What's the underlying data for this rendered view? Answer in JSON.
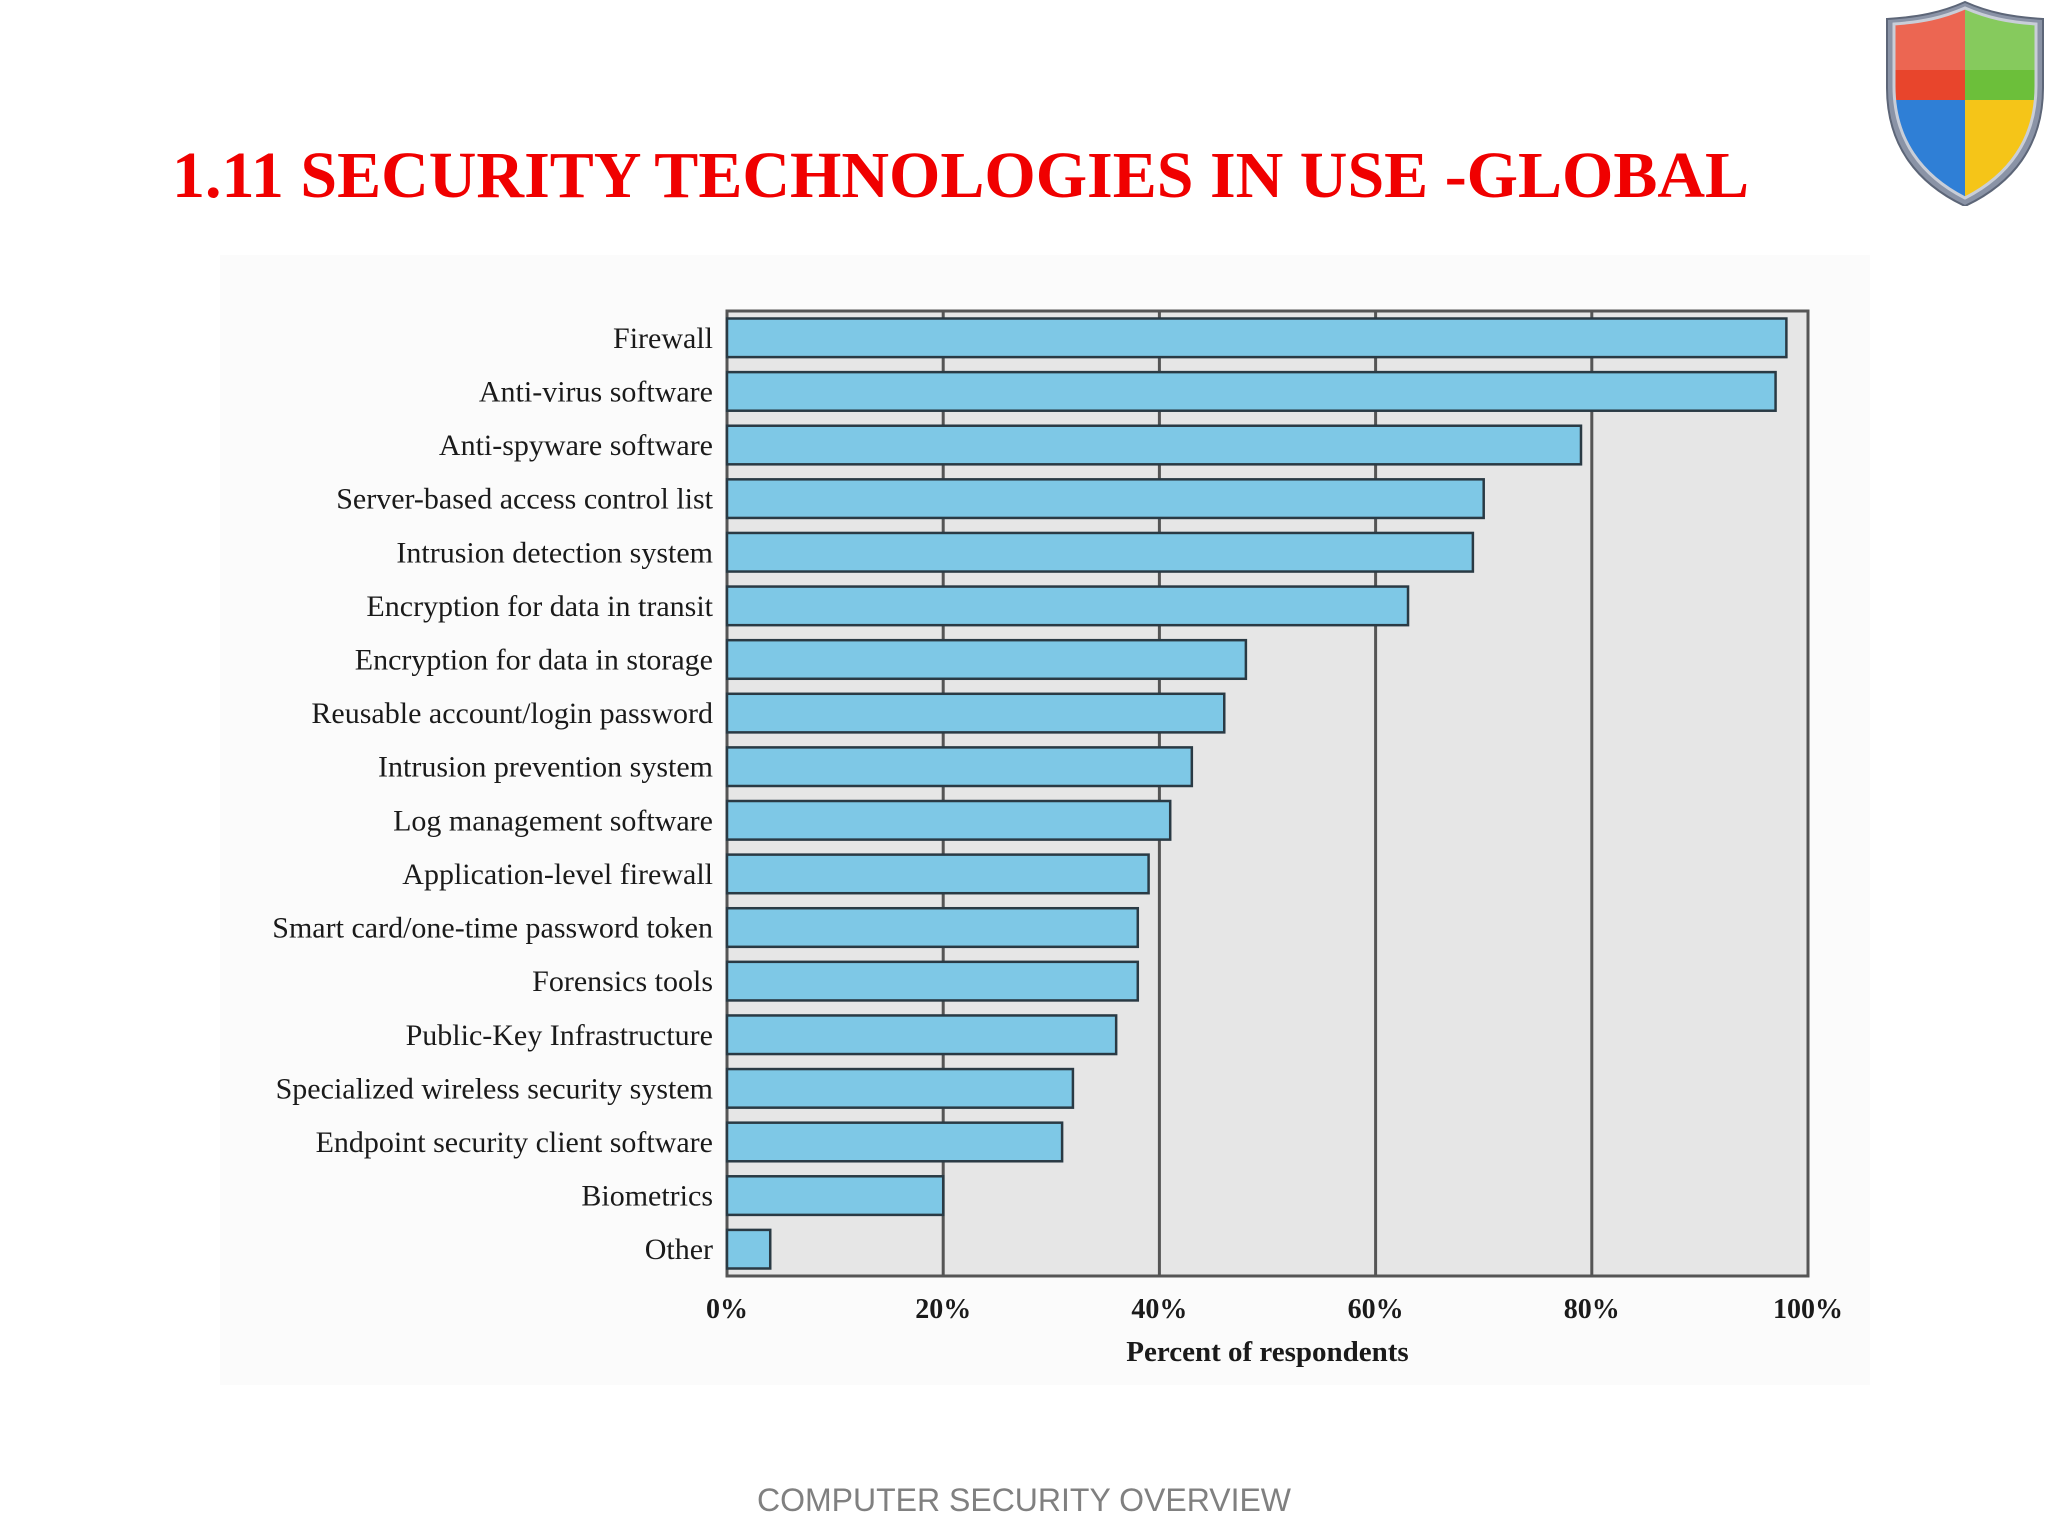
{
  "slide": {
    "title": "1.11 SECURITY TECHNOLOGIES IN USE -GLOBAL",
    "footer": "COMPUTER SECURITY OVERVIEW",
    "logo_icon": "shield-icon",
    "title_color": "#f00000"
  },
  "chart_data": {
    "type": "bar",
    "orientation": "horizontal",
    "title": "",
    "xlabel": "Percent of respondents",
    "ylabel": "",
    "xlim": [
      0,
      100
    ],
    "x_ticks": [
      "0%",
      "20%",
      "40%",
      "60%",
      "80%",
      "100%"
    ],
    "grid": true,
    "bar_color": "#7ec8e6",
    "categories": [
      "Firewall",
      "Anti-virus software",
      "Anti-spyware software",
      "Server-based access control list",
      "Intrusion detection system",
      "Encryption for data in transit",
      "Encryption for data in storage",
      "Reusable account/login password",
      "Intrusion prevention system",
      "Log management software",
      "Application-level firewall",
      "Smart card/one-time password token",
      "Forensics tools",
      "Public-Key Infrastructure",
      "Specialized wireless security system",
      "Endpoint security client software",
      "Biometrics",
      "Other"
    ],
    "values": [
      98,
      97,
      79,
      70,
      69,
      63,
      48,
      46,
      43,
      41,
      39,
      38,
      38,
      36,
      32,
      31,
      20,
      4
    ]
  }
}
